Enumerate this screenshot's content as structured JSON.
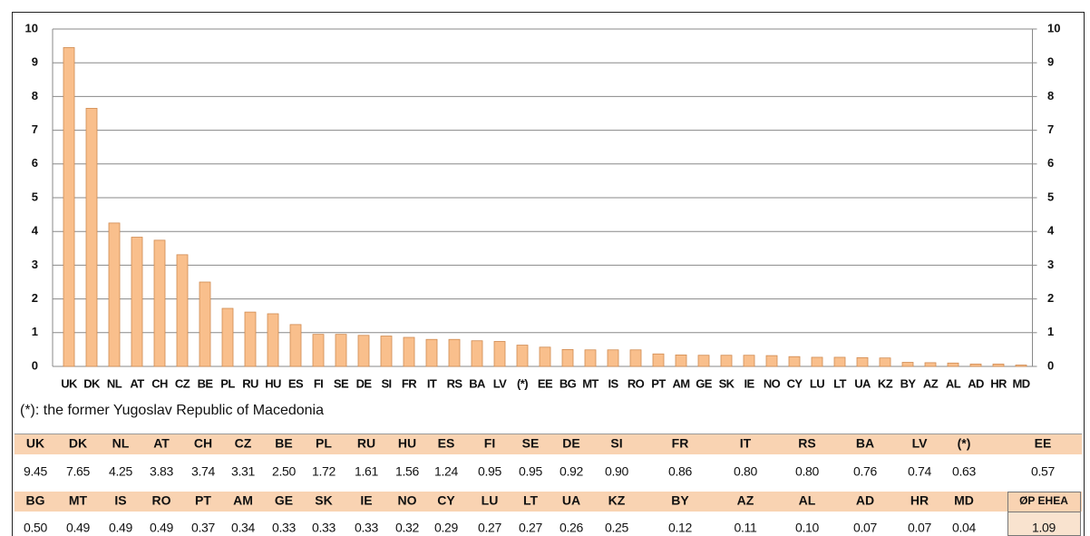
{
  "chart_data": {
    "type": "bar",
    "categories": [
      "UK",
      "DK",
      "NL",
      "AT",
      "CH",
      "CZ",
      "BE",
      "PL",
      "RU",
      "HU",
      "ES",
      "FI",
      "SE",
      "DE",
      "SI",
      "FR",
      "IT",
      "RS",
      "BA",
      "LV",
      "(*)",
      "EE",
      "BG",
      "MT",
      "IS",
      "RO",
      "PT",
      "AM",
      "GE",
      "SK",
      "IE",
      "NO",
      "CY",
      "LU",
      "LT",
      "UA",
      "KZ",
      "BY",
      "AZ",
      "AL",
      "AD",
      "HR",
      "MD"
    ],
    "values": [
      9.45,
      7.65,
      4.25,
      3.83,
      3.74,
      3.31,
      2.5,
      1.72,
      1.61,
      1.56,
      1.24,
      0.95,
      0.95,
      0.92,
      0.9,
      0.86,
      0.8,
      0.8,
      0.76,
      0.74,
      0.63,
      0.57,
      0.5,
      0.49,
      0.49,
      0.49,
      0.37,
      0.34,
      0.33,
      0.33,
      0.33,
      0.32,
      0.29,
      0.27,
      0.27,
      0.26,
      0.25,
      0.12,
      0.11,
      0.1,
      0.07,
      0.07,
      0.04
    ],
    "value_labels": [
      "9.45",
      "7.65",
      "4.25",
      "3.83",
      "3.74",
      "3.31",
      "2.50",
      "1.72",
      "1.61",
      "1.56",
      "1.24",
      "0.95",
      "0.95",
      "0.92",
      "0.90",
      "0.86",
      "0.80",
      "0.80",
      "0.76",
      "0.74",
      "0.63",
      "0.57",
      "0.50",
      "0.49",
      "0.49",
      "0.49",
      "0.37",
      "0.34",
      "0.33",
      "0.33",
      "0.33",
      "0.32",
      "0.29",
      "0.27",
      "0.27",
      "0.26",
      "0.25",
      "0.12",
      "0.11",
      "0.10",
      "0.07",
      "0.07",
      "0.04"
    ],
    "color": "#f9bf8c",
    "ylim": [
      0,
      10
    ],
    "yticks": [
      0,
      1,
      2,
      3,
      4,
      5,
      6,
      7,
      8,
      9,
      10
    ],
    "y2lim": [
      0,
      10
    ],
    "y2ticks": [
      0,
      1,
      2,
      3,
      4,
      5,
      6,
      7,
      8,
      9,
      10
    ],
    "grid": true,
    "note": "(*): the former Yugoslav Republic of Macedonia",
    "average_label": "ØP EHEA",
    "average_value": 1.09,
    "average_value_label": "1.09"
  }
}
